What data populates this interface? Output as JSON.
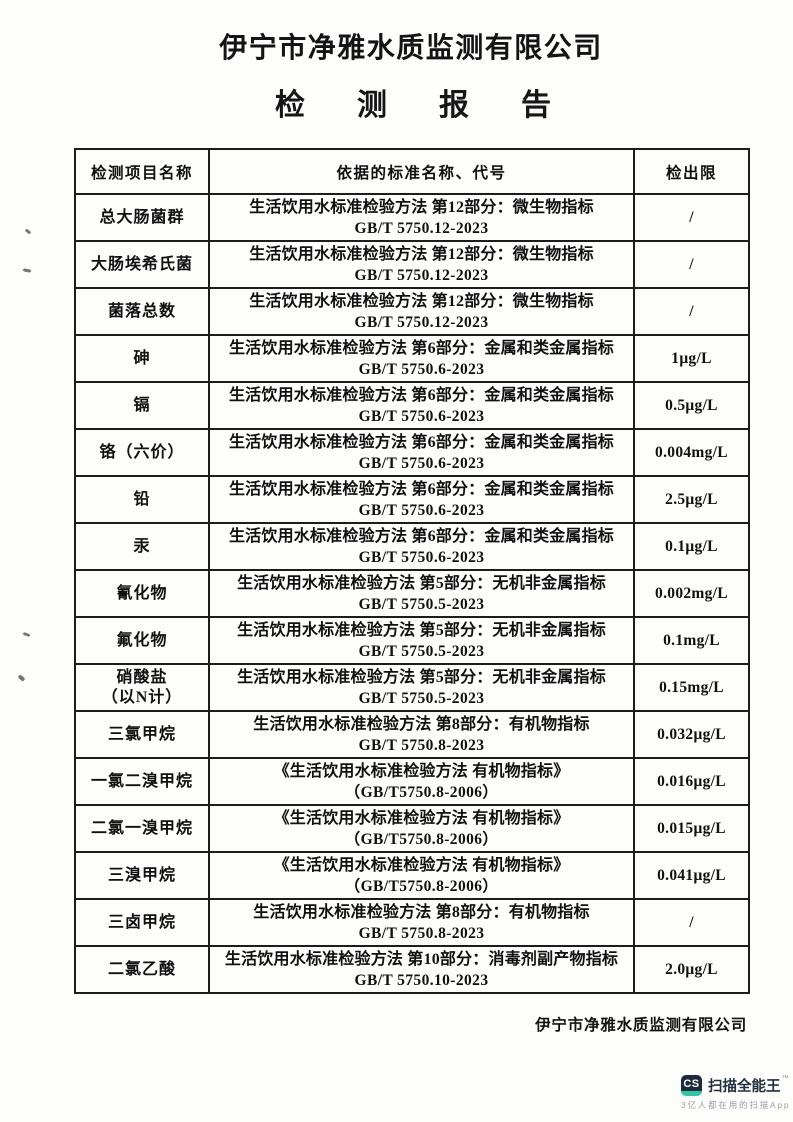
{
  "document": {
    "title": "伊宁市净雅水质监测有限公司",
    "subtitle": "检测报告",
    "footer_company": "伊宁市净雅水质监测有限公司"
  },
  "table": {
    "headers": [
      "检测项目名称",
      "依据的标准名称、代号",
      "检出限"
    ],
    "rows": [
      {
        "item": "总大肠菌群",
        "standard_line1": "生活饮用水标准检验方法 第12部分：微生物指标",
        "standard_line2": "GB/T 5750.12-2023",
        "limit": "/"
      },
      {
        "item": "大肠埃希氏菌",
        "standard_line1": "生活饮用水标准检验方法 第12部分：微生物指标",
        "standard_line2": "GB/T 5750.12-2023",
        "limit": "/"
      },
      {
        "item": "菌落总数",
        "standard_line1": "生活饮用水标准检验方法 第12部分：微生物指标",
        "standard_line2": "GB/T 5750.12-2023",
        "limit": "/"
      },
      {
        "item": "砷",
        "standard_line1": "生活饮用水标准检验方法 第6部分：金属和类金属指标",
        "standard_line2": "GB/T 5750.6-2023",
        "limit": "1μg/L"
      },
      {
        "item": "镉",
        "standard_line1": "生活饮用水标准检验方法 第6部分：金属和类金属指标",
        "standard_line2": "GB/T 5750.6-2023",
        "limit": "0.5μg/L"
      },
      {
        "item": "铬（六价）",
        "standard_line1": "生活饮用水标准检验方法 第6部分：金属和类金属指标",
        "standard_line2": "GB/T 5750.6-2023",
        "limit": "0.004mg/L"
      },
      {
        "item": "铅",
        "standard_line1": "生活饮用水标准检验方法 第6部分：金属和类金属指标",
        "standard_line2": "GB/T 5750.6-2023",
        "limit": "2.5μg/L"
      },
      {
        "item": "汞",
        "standard_line1": "生活饮用水标准检验方法 第6部分：金属和类金属指标",
        "standard_line2": "GB/T 5750.6-2023",
        "limit": "0.1μg/L"
      },
      {
        "item": "氰化物",
        "standard_line1": "生活饮用水标准检验方法 第5部分：无机非金属指标",
        "standard_line2": "GB/T 5750.5-2023",
        "limit": "0.002mg/L"
      },
      {
        "item": "氟化物",
        "standard_line1": "生活饮用水标准检验方法 第5部分：无机非金属指标",
        "standard_line2": "GB/T 5750.5-2023",
        "limit": "0.1mg/L"
      },
      {
        "item": "硝酸盐\n（以N计）",
        "standard_line1": "生活饮用水标准检验方法 第5部分：无机非金属指标",
        "standard_line2": "GB/T 5750.5-2023",
        "limit": "0.15mg/L"
      },
      {
        "item": "三氯甲烷",
        "standard_line1": "生活饮用水标准检验方法 第8部分：有机物指标",
        "standard_line2": "GB/T 5750.8-2023",
        "limit": "0.032μg/L"
      },
      {
        "item": "一氯二溴甲烷",
        "standard_line1": "《生活饮用水标准检验方法 有机物指标》",
        "standard_line2": "（GB/T5750.8-2006）",
        "limit": "0.016μg/L"
      },
      {
        "item": "二氯一溴甲烷",
        "standard_line1": "《生活饮用水标准检验方法 有机物指标》",
        "standard_line2": "（GB/T5750.8-2006）",
        "limit": "0.015μg/L"
      },
      {
        "item": "三溴甲烷",
        "standard_line1": "《生活饮用水标准检验方法 有机物指标》",
        "standard_line2": "（GB/T5750.8-2006）",
        "limit": "0.041μg/L"
      },
      {
        "item": "三卤甲烷",
        "standard_line1": "生活饮用水标准检验方法 第8部分：有机物指标",
        "standard_line2": "GB/T 5750.8-2023",
        "limit": "/"
      },
      {
        "item": "二氯乙酸",
        "standard_line1": "生活饮用水标准检验方法 第10部分：消毒剂副产物指标",
        "standard_line2": "GB/T 5750.10-2023",
        "limit": "2.0μg/L"
      }
    ]
  },
  "scanner_watermark": {
    "logo_text": "CS",
    "brand_name": "扫描全能王",
    "trademark": "™",
    "tagline": "3亿人都在用的扫描App",
    "colors": {
      "logo_navy": "#1e2b3b",
      "logo_teal": "#2ec4a5",
      "brand_text": "#22303f",
      "tagline_gray": "#9aa0a7"
    }
  }
}
